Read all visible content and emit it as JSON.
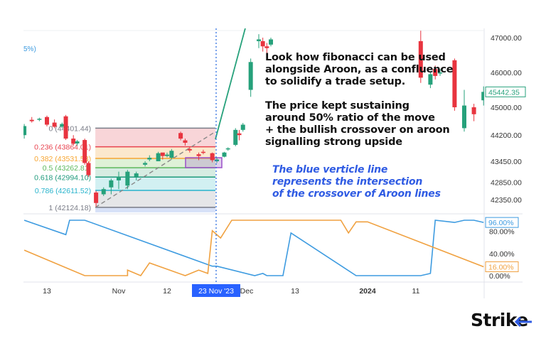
{
  "chart_data": {
    "type": "candlestick",
    "title": "",
    "partial_label_top_left": "5%)",
    "price_axis": {
      "ticks": [
        "47000.00",
        "46000.00",
        "45000.00",
        "44200.00",
        "43450.00",
        "42850.00",
        "42350.00"
      ],
      "last_price": "45442.35",
      "range": [
        42000,
        47050
      ]
    },
    "time_axis": {
      "ticks": [
        {
          "date": "2023-10-13",
          "label": "13"
        },
        {
          "date": "2023-11-01",
          "label": "Nov"
        },
        {
          "date": "2023-11-12",
          "label": "12"
        },
        {
          "date": "2023-12-01",
          "label": "Dec"
        },
        {
          "date": "2023-12-13",
          "label": "13"
        },
        {
          "date": "2024-01-01",
          "label": "2024"
        },
        {
          "date": "2024-01-11",
          "label": "11"
        }
      ],
      "highlighted": {
        "date": "2023-11-23",
        "label": "23 Nov '23"
      }
    },
    "fibonacci": {
      "start_date": "2023-10-26",
      "end_date": "2023-11-23",
      "levels": [
        {
          "ratio": 0,
          "price": 44401.44,
          "label": "0 (44401.44)",
          "color": "#787b86",
          "fill": "#f7d0d4"
        },
        {
          "ratio": 0.236,
          "price": 43864.01,
          "label": "0.236 (43864.01)",
          "color": "#e8434f",
          "fill": "#fbe5c8"
        },
        {
          "ratio": 0.382,
          "price": 43531.53,
          "label": "0.382 (43531.53)",
          "color": "#f7a531",
          "fill": "#dcefd3"
        },
        {
          "ratio": 0.5,
          "price": 43262.81,
          "label": "0.5 (43262.81)",
          "color": "#5cb85c",
          "fill": "#d2eadf"
        },
        {
          "ratio": 0.618,
          "price": 42994.1,
          "label": "0.618 (42994.10)",
          "color": "#1f9a7c",
          "fill": "#cdeef1"
        },
        {
          "ratio": 0.786,
          "price": 42611.52,
          "label": "0.786 (42611.52)",
          "color": "#27b3cc",
          "fill": "#e2e3e5"
        },
        {
          "ratio": 1,
          "price": 42124.18,
          "label": "1 (42124.18)",
          "color": "#787b86",
          "fill": "#d3def6"
        }
      ]
    },
    "candles": [
      [
        "2023-10-07",
        44200,
        44520,
        44100,
        44460
      ],
      [
        "2023-10-09",
        44640,
        44720,
        44560,
        44600
      ],
      [
        "2023-10-11",
        44640,
        44700,
        44600,
        44670
      ],
      [
        "2023-10-13",
        44720,
        44760,
        44450,
        44500
      ],
      [
        "2023-10-15",
        44560,
        44650,
        44400,
        44440
      ],
      [
        "2023-10-17",
        44440,
        44560,
        44400,
        44520
      ],
      [
        "2023-10-18",
        44740,
        44780,
        44060,
        44100
      ],
      [
        "2023-10-20",
        44100,
        44200,
        43900,
        43950
      ],
      [
        "2023-10-21",
        43960,
        44060,
        43900,
        44020
      ],
      [
        "2023-10-23",
        44060,
        44100,
        43350,
        43400
      ],
      [
        "2023-10-24",
        43400,
        43450,
        43000,
        43050
      ],
      [
        "2023-10-26",
        42550,
        42600,
        42150,
        42250
      ],
      [
        "2023-10-28",
        42500,
        42700,
        42450,
        42650
      ],
      [
        "2023-10-30",
        42700,
        42950,
        42500,
        42900
      ],
      [
        "2023-11-01",
        42900,
        43150,
        42650,
        43000
      ],
      [
        "2023-11-03",
        42750,
        43200,
        42650,
        43150
      ],
      [
        "2023-11-05",
        43000,
        43150,
        42900,
        43100
      ],
      [
        "2023-11-07",
        43350,
        43450,
        43300,
        43400
      ],
      [
        "2023-11-08",
        43500,
        43620,
        43450,
        43550
      ],
      [
        "2023-11-10",
        43450,
        43720,
        43450,
        43680
      ],
      [
        "2023-11-11",
        43700,
        43650,
        43500,
        43600
      ],
      [
        "2023-11-12",
        43600,
        43700,
        43560,
        43640
      ],
      [
        "2023-11-13",
        43550,
        43800,
        43500,
        43750
      ],
      [
        "2023-11-15",
        44260,
        44300,
        44050,
        44100
      ],
      [
        "2023-11-16",
        44050,
        44100,
        43900,
        43980
      ],
      [
        "2023-11-17",
        43800,
        43850,
        43700,
        43760
      ],
      [
        "2023-11-19",
        43650,
        43700,
        43480,
        43600
      ],
      [
        "2023-11-20",
        43720,
        43780,
        43650,
        43700
      ],
      [
        "2023-11-22",
        43680,
        43700,
        43420,
        43480
      ],
      [
        "2023-11-23",
        43450,
        43560,
        43400,
        43500
      ],
      [
        "2023-11-25",
        43580,
        43720,
        43560,
        43700
      ],
      [
        "2023-11-26",
        43800,
        43850,
        43750,
        43820
      ],
      [
        "2023-11-28",
        43920,
        44400,
        43880,
        44350
      ],
      [
        "2023-11-29",
        44250,
        44350,
        44050,
        44200
      ],
      [
        "2023-11-30",
        44350,
        44550,
        44300,
        44500
      ],
      [
        "2023-12-02",
        45500,
        46400,
        45300,
        46300
      ],
      [
        "2023-12-04",
        46900,
        47100,
        46700,
        46950
      ],
      [
        "2023-12-05",
        46900,
        47000,
        46600,
        46750
      ],
      [
        "2023-12-06",
        46750,
        46850,
        46500,
        46700
      ],
      [
        "2023-12-07",
        46800,
        47000,
        46750,
        46950
      ],
      [
        "2024-01-12",
        46900,
        47200,
        45700,
        45850
      ],
      [
        "2024-01-14",
        45650,
        46000,
        45550,
        45950
      ],
      [
        "2024-01-15",
        46100,
        46200,
        45800,
        45900
      ],
      [
        "2024-01-16",
        46000,
        46100,
        45900,
        46000
      ],
      [
        "2024-01-19",
        46350,
        46400,
        44900,
        45000
      ],
      [
        "2024-01-21",
        44400,
        45500,
        44300,
        45050
      ],
      [
        "2024-01-23",
        45000,
        45100,
        44600,
        44800
      ],
      [
        "2024-01-25",
        45200,
        45600,
        45050,
        45442.35
      ]
    ],
    "aroon": {
      "ticks": [
        "80.00%",
        "40.00%",
        "0.00%"
      ],
      "ylim": [
        0,
        100
      ],
      "series": [
        {
          "key": "aroon_a",
          "color": "#3d9be0",
          "last_label": "96.00%",
          "points": [
            [
              "2023-10-07",
              100
            ],
            [
              "2023-10-18",
              74
            ],
            [
              "2023-10-19",
              100
            ],
            [
              "2023-10-23",
              100
            ],
            [
              "2023-11-22",
              17
            ],
            [
              "2023-11-23",
              17
            ],
            [
              "2023-12-03",
              0
            ],
            [
              "2023-12-05",
              4
            ],
            [
              "2023-12-06",
              0
            ],
            [
              "2023-12-10",
              0
            ],
            [
              "2023-12-12",
              77
            ],
            [
              "2023-12-29",
              0
            ],
            [
              "2024-01-12",
              0
            ],
            [
              "2024-01-14",
              4
            ],
            [
              "2024-01-15",
              100
            ],
            [
              "2024-01-19",
              96
            ],
            [
              "2024-01-21",
              100
            ],
            [
              "2024-01-23",
              100
            ],
            [
              "2024-01-25",
              96
            ]
          ]
        },
        {
          "key": "aroon_b",
          "color": "#f0a140",
          "last_label": "16.00%",
          "points": [
            [
              "2023-10-07",
              46
            ],
            [
              "2023-10-23",
              0
            ],
            [
              "2023-11-03",
              0
            ],
            [
              "2023-11-03",
              10
            ],
            [
              "2023-11-06",
              0
            ],
            [
              "2023-11-08",
              23
            ],
            [
              "2023-11-16",
              0
            ],
            [
              "2023-11-19",
              10
            ],
            [
              "2023-11-21",
              4
            ],
            [
              "2023-11-22",
              81
            ],
            [
              "2023-11-24",
              68
            ],
            [
              "2023-11-27",
              100
            ],
            [
              "2023-12-25",
              100
            ],
            [
              "2023-12-27",
              77
            ],
            [
              "2023-12-29",
              97
            ],
            [
              "2024-01-01",
              97
            ],
            [
              "2024-01-25",
              16
            ]
          ]
        }
      ]
    }
  },
  "annotations": {
    "main_lines": [
      "Look how fibonacci can be used",
      "alongside Aroon, as a confluence",
      "to solidify a trade setup."
    ],
    "second_lines": [
      "The price kept sustaining",
      "around 50% ratio of the move",
      "+ the bullish crossover on aroon",
      "signalling strong upside"
    ],
    "blue_lines": [
      "The blue verticle line",
      "represents the intersection",
      "of the crossover of Aroon lines"
    ]
  },
  "logo": {
    "text": "Strike",
    "accent": "#2f5be3"
  },
  "colors": {
    "up": "#26a17b",
    "down": "#e8343f",
    "crosshair": "#2f6fe0",
    "purple_box": "#9b4fc9"
  }
}
